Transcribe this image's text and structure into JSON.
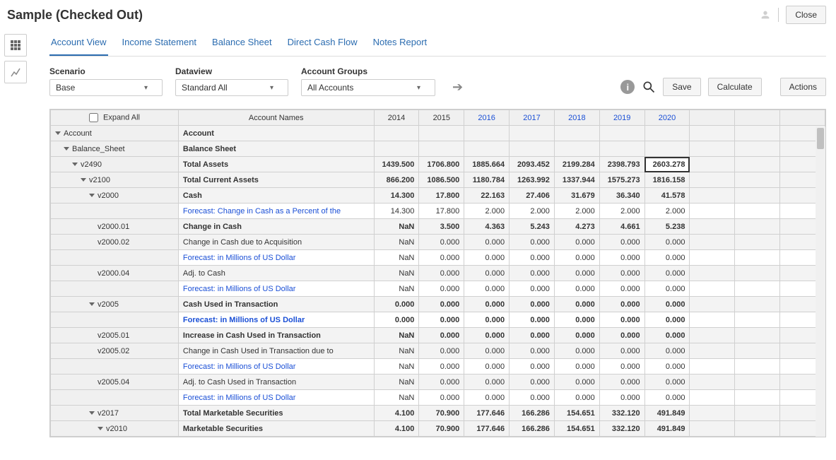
{
  "header": {
    "title": "Sample (Checked Out)",
    "close_label": "Close"
  },
  "tabs": [
    {
      "id": "account-view",
      "label": "Account View",
      "active": true
    },
    {
      "id": "income-statement",
      "label": "Income Statement",
      "active": false
    },
    {
      "id": "balance-sheet",
      "label": "Balance Sheet",
      "active": false
    },
    {
      "id": "direct-cash-flow",
      "label": "Direct Cash Flow",
      "active": false
    },
    {
      "id": "notes-report",
      "label": "Notes Report",
      "active": false
    }
  ],
  "controls": {
    "scenario": {
      "label": "Scenario",
      "value": "Base"
    },
    "dataview": {
      "label": "Dataview",
      "value": "Standard All"
    },
    "account_groups": {
      "label": "Account Groups",
      "value": "All Accounts"
    },
    "save_label": "Save",
    "calculate_label": "Calculate",
    "actions_label": "Actions"
  },
  "grid": {
    "expand_all_label": "Expand All",
    "col_tree_header": "",
    "col_name_header": "Account Names",
    "years": [
      {
        "label": "2014",
        "forecast": false
      },
      {
        "label": "2015",
        "forecast": false
      },
      {
        "label": "2016",
        "forecast": true
      },
      {
        "label": "2017",
        "forecast": true
      },
      {
        "label": "2018",
        "forecast": true
      },
      {
        "label": "2019",
        "forecast": true
      },
      {
        "label": "2020",
        "forecast": true
      }
    ],
    "rows": [
      {
        "tree": "Account",
        "indent": 0,
        "toggle": true,
        "name": "Account",
        "bold": true,
        "vals": [
          "",
          "",
          "",
          "",
          "",
          "",
          ""
        ],
        "shade": true
      },
      {
        "tree": "Balance_Sheet",
        "indent": 1,
        "toggle": true,
        "name": "Balance Sheet",
        "bold": true,
        "vals": [
          "",
          "",
          "",
          "",
          "",
          "",
          ""
        ],
        "shade": true
      },
      {
        "tree": "v2490",
        "indent": 2,
        "toggle": true,
        "name": "Total Assets",
        "bold": true,
        "vals": [
          "1439.500",
          "1706.800",
          "1885.664",
          "2093.452",
          "2199.284",
          "2398.793",
          "2603.278"
        ],
        "shade": true,
        "sel": 6
      },
      {
        "tree": "v2100",
        "indent": 3,
        "toggle": true,
        "name": "Total Current Assets",
        "bold": true,
        "vals": [
          "866.200",
          "1086.500",
          "1180.784",
          "1263.992",
          "1337.944",
          "1575.273",
          "1816.158"
        ],
        "shade": true
      },
      {
        "tree": "v2000",
        "indent": 4,
        "toggle": true,
        "name": "Cash",
        "bold": true,
        "vals": [
          "14.300",
          "17.800",
          "22.163",
          "27.406",
          "31.679",
          "36.340",
          "41.578"
        ],
        "shade": true
      },
      {
        "tree": "",
        "indent": 0,
        "toggle": false,
        "name": "Forecast: Change in Cash as a Percent of the",
        "link": true,
        "vals": [
          "14.300",
          "17.800",
          "2.000",
          "2.000",
          "2.000",
          "2.000",
          "2.000"
        ],
        "shade": false
      },
      {
        "tree": "v2000.01",
        "indent": 5,
        "toggle": false,
        "name": "Change in Cash",
        "bold": true,
        "vals": [
          "NaN",
          "3.500",
          "4.363",
          "5.243",
          "4.273",
          "4.661",
          "5.238"
        ],
        "shade": true
      },
      {
        "tree": "v2000.02",
        "indent": 5,
        "toggle": false,
        "name": "Change in Cash due to Acquisition",
        "vals": [
          "NaN",
          "0.000",
          "0.000",
          "0.000",
          "0.000",
          "0.000",
          "0.000"
        ],
        "shade": true
      },
      {
        "tree": "",
        "indent": 0,
        "toggle": false,
        "name": "Forecast: in Millions of US Dollar",
        "link": true,
        "vals": [
          "NaN",
          "0.000",
          "0.000",
          "0.000",
          "0.000",
          "0.000",
          "0.000"
        ],
        "shade": false
      },
      {
        "tree": "v2000.04",
        "indent": 5,
        "toggle": false,
        "name": "Adj. to Cash",
        "vals": [
          "NaN",
          "0.000",
          "0.000",
          "0.000",
          "0.000",
          "0.000",
          "0.000"
        ],
        "shade": true
      },
      {
        "tree": "",
        "indent": 0,
        "toggle": false,
        "name": "Forecast: in Millions of US Dollar",
        "link": true,
        "vals": [
          "NaN",
          "0.000",
          "0.000",
          "0.000",
          "0.000",
          "0.000",
          "0.000"
        ],
        "shade": false
      },
      {
        "tree": "v2005",
        "indent": 4,
        "toggle": true,
        "name": "Cash Used in Transaction",
        "bold": true,
        "vals": [
          "0.000",
          "0.000",
          "0.000",
          "0.000",
          "0.000",
          "0.000",
          "0.000"
        ],
        "shade": true
      },
      {
        "tree": "",
        "indent": 0,
        "toggle": false,
        "name": "Forecast: in Millions of US Dollar",
        "link": true,
        "bold": true,
        "vals": [
          "0.000",
          "0.000",
          "0.000",
          "0.000",
          "0.000",
          "0.000",
          "0.000"
        ],
        "shade": false
      },
      {
        "tree": "v2005.01",
        "indent": 5,
        "toggle": false,
        "name": "Increase in Cash Used in Transaction",
        "bold": true,
        "vals": [
          "NaN",
          "0.000",
          "0.000",
          "0.000",
          "0.000",
          "0.000",
          "0.000"
        ],
        "shade": true
      },
      {
        "tree": "v2005.02",
        "indent": 5,
        "toggle": false,
        "name": "Change in Cash Used in Transaction due to",
        "vals": [
          "NaN",
          "0.000",
          "0.000",
          "0.000",
          "0.000",
          "0.000",
          "0.000"
        ],
        "shade": true
      },
      {
        "tree": "",
        "indent": 0,
        "toggle": false,
        "name": "Forecast: in Millions of US Dollar",
        "link": true,
        "vals": [
          "NaN",
          "0.000",
          "0.000",
          "0.000",
          "0.000",
          "0.000",
          "0.000"
        ],
        "shade": false
      },
      {
        "tree": "v2005.04",
        "indent": 5,
        "toggle": false,
        "name": "Adj. to Cash Used in Transaction",
        "vals": [
          "NaN",
          "0.000",
          "0.000",
          "0.000",
          "0.000",
          "0.000",
          "0.000"
        ],
        "shade": true
      },
      {
        "tree": "",
        "indent": 0,
        "toggle": false,
        "name": "Forecast: in Millions of US Dollar",
        "link": true,
        "vals": [
          "NaN",
          "0.000",
          "0.000",
          "0.000",
          "0.000",
          "0.000",
          "0.000"
        ],
        "shade": false
      },
      {
        "tree": "v2017",
        "indent": 4,
        "toggle": true,
        "name": "Total Marketable Securities",
        "bold": true,
        "vals": [
          "4.100",
          "70.900",
          "177.646",
          "166.286",
          "154.651",
          "332.120",
          "491.849"
        ],
        "shade": true
      },
      {
        "tree": "v2010",
        "indent": 5,
        "toggle": true,
        "name": "Marketable Securities",
        "bold": true,
        "vals": [
          "4.100",
          "70.900",
          "177.646",
          "166.286",
          "154.651",
          "332.120",
          "491.849"
        ],
        "shade": true
      }
    ]
  }
}
